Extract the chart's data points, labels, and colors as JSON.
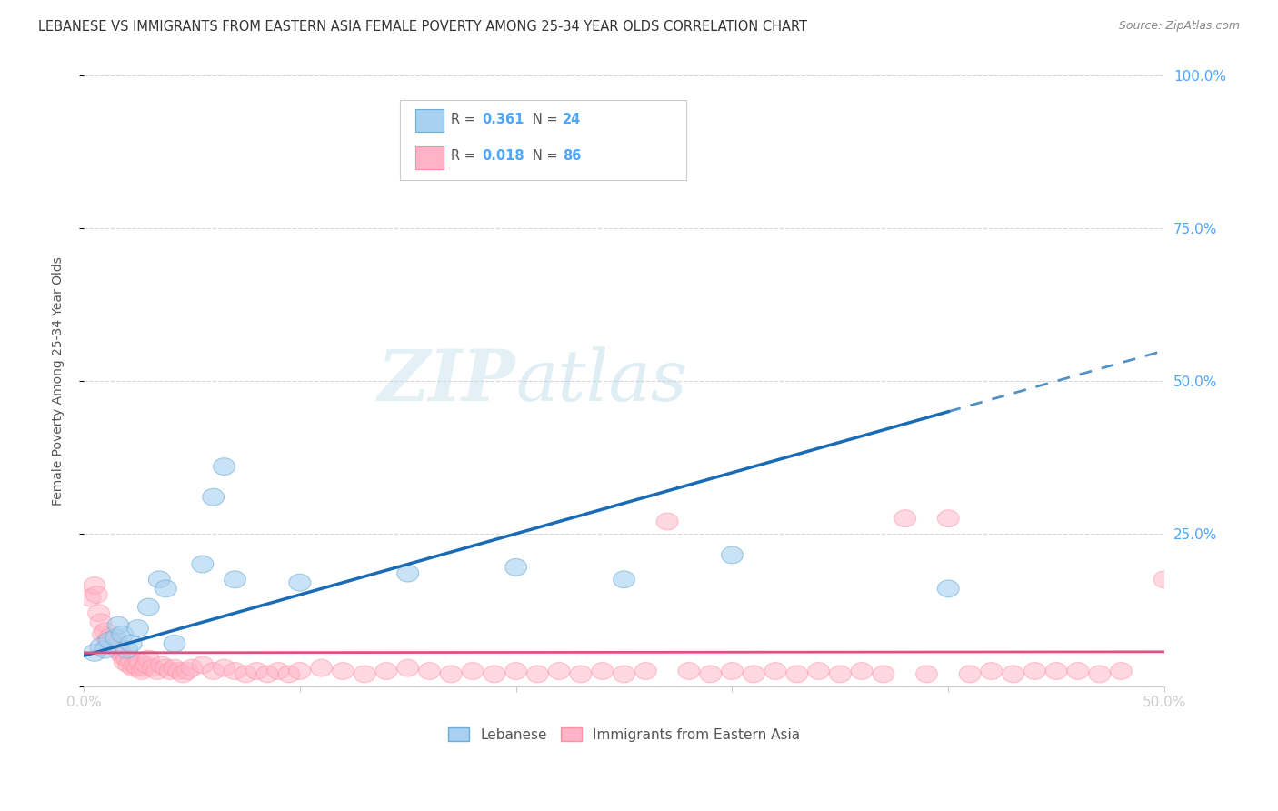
{
  "title": "LEBANESE VS IMMIGRANTS FROM EASTERN ASIA FEMALE POVERTY AMONG 25-34 YEAR OLDS CORRELATION CHART",
  "source": "Source: ZipAtlas.com",
  "ylabel": "Female Poverty Among 25-34 Year Olds",
  "xlim": [
    0.0,
    0.5
  ],
  "ylim": [
    0.0,
    1.0
  ],
  "group1_name": "Lebanese",
  "group2_name": "Immigrants from Eastern Asia",
  "group1_color": "#a8d0f0",
  "group2_color": "#ffb3c6",
  "group1_edge_color": "#6baed6",
  "group2_edge_color": "#ff8fa3",
  "group1_trend_color": "#1a6bb5",
  "group2_trend_color": "#e05080",
  "background_color": "#ffffff",
  "grid_color": "#cccccc",
  "right_axis_color": "#4da6ff",
  "legend_r1": "0.361",
  "legend_n1": "24",
  "legend_r2": "0.018",
  "legend_n2": "86",
  "lebanese_x": [
    0.005,
    0.008,
    0.01,
    0.012,
    0.015,
    0.016,
    0.018,
    0.02,
    0.022,
    0.025,
    0.03,
    0.035,
    0.038,
    0.042,
    0.055,
    0.06,
    0.065,
    0.07,
    0.1,
    0.15,
    0.2,
    0.25,
    0.3,
    0.4
  ],
  "lebanese_y": [
    0.055,
    0.065,
    0.06,
    0.075,
    0.08,
    0.1,
    0.085,
    0.06,
    0.07,
    0.095,
    0.13,
    0.175,
    0.16,
    0.07,
    0.2,
    0.31,
    0.36,
    0.175,
    0.17,
    0.185,
    0.195,
    0.175,
    0.215,
    0.16
  ],
  "eastern_asia_x": [
    0.003,
    0.005,
    0.006,
    0.007,
    0.008,
    0.009,
    0.01,
    0.011,
    0.012,
    0.013,
    0.014,
    0.015,
    0.016,
    0.017,
    0.018,
    0.019,
    0.02,
    0.021,
    0.022,
    0.023,
    0.024,
    0.025,
    0.026,
    0.027,
    0.028,
    0.029,
    0.03,
    0.032,
    0.034,
    0.036,
    0.038,
    0.04,
    0.042,
    0.044,
    0.046,
    0.048,
    0.05,
    0.055,
    0.06,
    0.065,
    0.07,
    0.075,
    0.08,
    0.085,
    0.09,
    0.095,
    0.1,
    0.11,
    0.12,
    0.13,
    0.14,
    0.15,
    0.16,
    0.17,
    0.18,
    0.19,
    0.2,
    0.21,
    0.22,
    0.23,
    0.24,
    0.25,
    0.26,
    0.27,
    0.28,
    0.29,
    0.3,
    0.31,
    0.32,
    0.33,
    0.34,
    0.35,
    0.36,
    0.37,
    0.38,
    0.39,
    0.4,
    0.41,
    0.42,
    0.43,
    0.44,
    0.45,
    0.46,
    0.47,
    0.48,
    0.5
  ],
  "eastern_asia_y": [
    0.145,
    0.165,
    0.15,
    0.12,
    0.105,
    0.085,
    0.09,
    0.075,
    0.08,
    0.07,
    0.065,
    0.075,
    0.06,
    0.055,
    0.05,
    0.04,
    0.045,
    0.035,
    0.04,
    0.03,
    0.035,
    0.03,
    0.04,
    0.025,
    0.03,
    0.035,
    0.045,
    0.03,
    0.025,
    0.035,
    0.03,
    0.025,
    0.03,
    0.025,
    0.02,
    0.025,
    0.03,
    0.035,
    0.025,
    0.03,
    0.025,
    0.02,
    0.025,
    0.02,
    0.025,
    0.02,
    0.025,
    0.03,
    0.025,
    0.02,
    0.025,
    0.03,
    0.025,
    0.02,
    0.025,
    0.02,
    0.025,
    0.02,
    0.025,
    0.02,
    0.025,
    0.02,
    0.025,
    0.27,
    0.025,
    0.02,
    0.025,
    0.02,
    0.025,
    0.02,
    0.025,
    0.02,
    0.025,
    0.02,
    0.275,
    0.02,
    0.275,
    0.02,
    0.025,
    0.02,
    0.025,
    0.025,
    0.025,
    0.02,
    0.025,
    0.175
  ]
}
